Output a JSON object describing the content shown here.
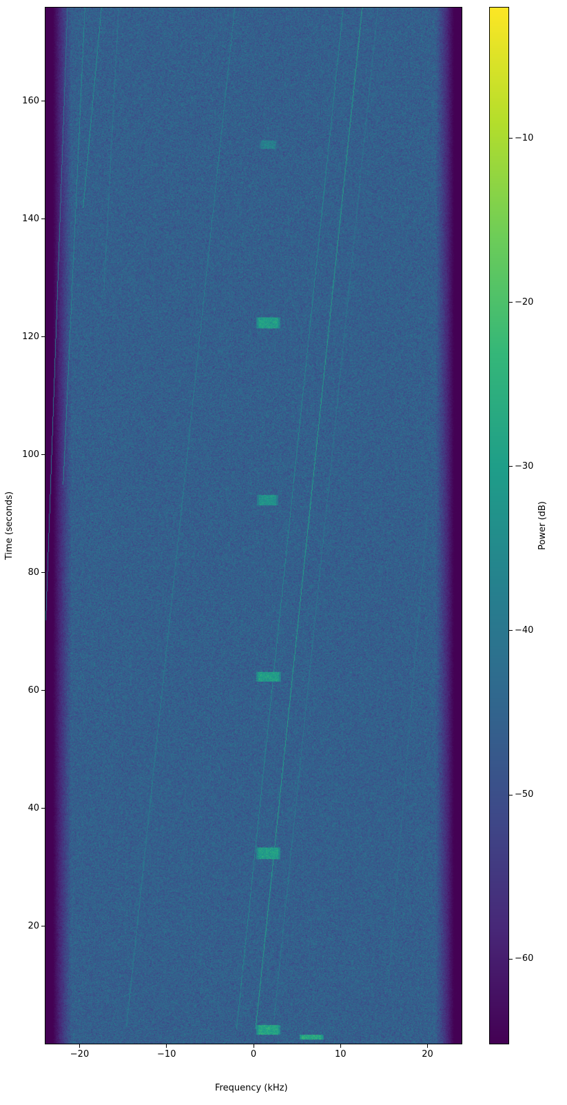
{
  "chart_data": {
    "type": "heatmap",
    "title": "",
    "xlabel": "Frequency (kHz)",
    "ylabel": "Time (seconds)",
    "colorbar_label": "Power (dB)",
    "colormap": "viridis",
    "xlim": [
      -24,
      24
    ],
    "ylim": [
      0,
      176
    ],
    "clim": [
      -65.2,
      -2
    ],
    "xticks": [
      -20,
      -10,
      0,
      10,
      20
    ],
    "yticks": [
      20,
      40,
      60,
      80,
      100,
      120,
      140,
      160
    ],
    "cticks": [
      -10,
      -20,
      -30,
      -40,
      -50,
      -60
    ],
    "noise_floor_db": -46,
    "passband_khz": [
      -21,
      21
    ],
    "bursts": [
      {
        "t": 152.8,
        "f": [
          0.6,
          2.7
        ],
        "duration": 1.2,
        "power_db": -38
      },
      {
        "t": 122.5,
        "f": [
          0.3,
          3.0
        ],
        "duration": 1.8,
        "power_db": -30
      },
      {
        "t": 92.4,
        "f": [
          0.4,
          2.8
        ],
        "duration": 1.6,
        "power_db": -33
      },
      {
        "t": 62.4,
        "f": [
          0.3,
          3.1
        ],
        "duration": 1.6,
        "power_db": -30
      },
      {
        "t": 32.4,
        "f": [
          0.3,
          3.0
        ],
        "duration": 1.8,
        "power_db": -30
      },
      {
        "t": 2.4,
        "f": [
          0.3,
          3.0
        ],
        "duration": 1.5,
        "power_db": -28
      },
      {
        "t": 1.2,
        "f": [
          5.3,
          8.0
        ],
        "duration": 0.7,
        "power_db": -27
      }
    ],
    "tones": [
      {
        "f_start": 0.2,
        "t_start": 2.5,
        "f_end": 12.5,
        "t_end": 176,
        "power_db": -30
      },
      {
        "f_start": -2.0,
        "t_start": 2.5,
        "f_end": 10.3,
        "t_end": 176,
        "power_db": -36
      },
      {
        "f_start": 2.3,
        "t_start": 4,
        "f_end": 14.3,
        "t_end": 176,
        "power_db": -40
      },
      {
        "f_start": -14.7,
        "t_start": 3,
        "f_end": -2.2,
        "t_end": 176,
        "power_db": -38
      },
      {
        "f_start": -24,
        "t_start": 72,
        "f_end": -21.5,
        "t_end": 176,
        "power_db": -40
      },
      {
        "f_start": -22,
        "t_start": 95,
        "f_end": -19.5,
        "t_end": 176,
        "power_db": -36
      },
      {
        "f_start": -19.7,
        "t_start": 142,
        "f_end": -17.6,
        "t_end": 176,
        "power_db": -34
      },
      {
        "f_start": -17.3,
        "t_start": 128,
        "f_end": -15.6,
        "t_end": 176,
        "power_db": -40
      },
      {
        "f_start": 15.5,
        "t_start": 10,
        "f_end": 20,
        "t_end": 90,
        "power_db": -42
      }
    ]
  }
}
